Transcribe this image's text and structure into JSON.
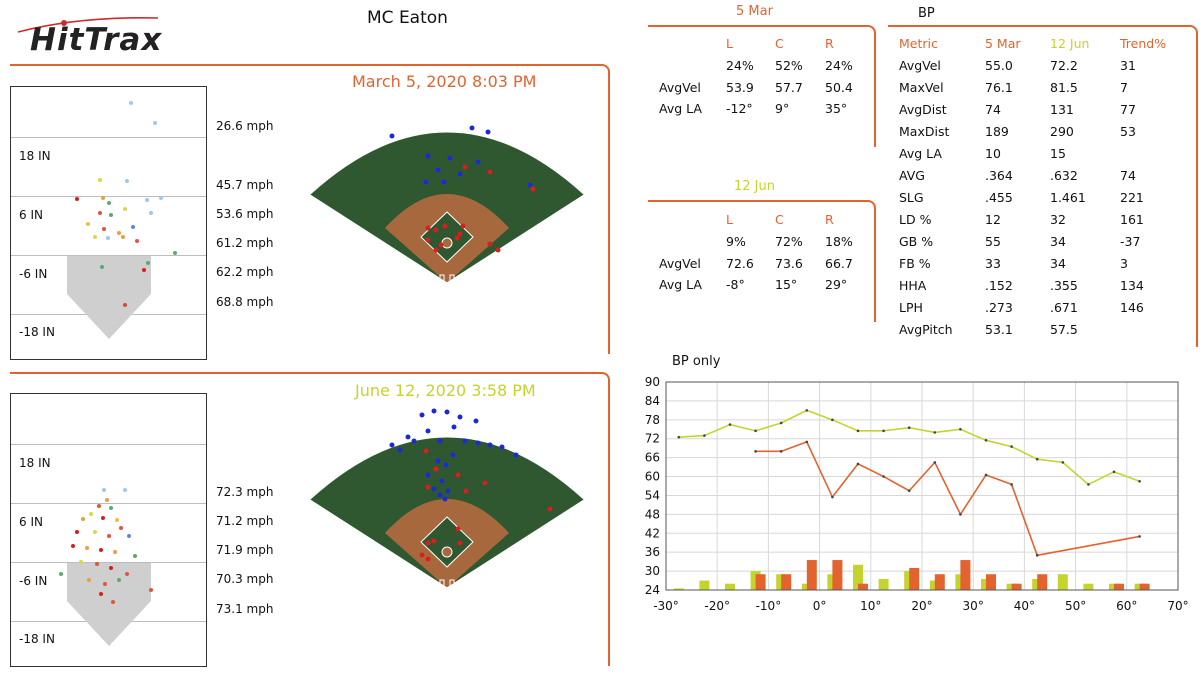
{
  "brand": {
    "logo_text": "HitTrax"
  },
  "player": {
    "name": "MC Eaton"
  },
  "colors": {
    "orange": "#e2632e",
    "yellow": "#c5d42c",
    "field_green": "#2f5730",
    "dirt": "#a8683e"
  },
  "session1": {
    "title": "March 5, 2020 8:03 PM",
    "zone_labels": [
      "18 IN",
      "6 IN",
      "-6 IN",
      "-18 IN"
    ],
    "mph": [
      "26.6 mph",
      "45.7 mph",
      "53.6 mph",
      "61.2 mph",
      "62.2 mph",
      "68.8 mph"
    ]
  },
  "session2": {
    "title": "June 12, 2020 3:58 PM",
    "zone_labels": [
      "18 IN",
      "6 IN",
      "-6 IN",
      "-18 IN"
    ],
    "mph": [
      "72.3 mph",
      "71.2 mph",
      "71.9 mph",
      "70.3 mph",
      "73.1 mph"
    ]
  },
  "split_mar": {
    "title": "5 Mar",
    "headers": [
      "L",
      "C",
      "R"
    ],
    "pct": [
      "24%",
      "52%",
      "24%"
    ],
    "avgvel_label": "AvgVel",
    "avgvel": [
      "53.9",
      "57.7",
      "50.4"
    ],
    "avgla_label": "Avg LA",
    "avgla": [
      "-12°",
      "9°",
      "35°"
    ]
  },
  "split_jun": {
    "title": "12 Jun",
    "headers": [
      "L",
      "C",
      "R"
    ],
    "pct": [
      "9%",
      "72%",
      "18%"
    ],
    "avgvel_label": "AvgVel",
    "avgvel": [
      "72.6",
      "73.6",
      "66.7"
    ],
    "avgla_label": "Avg LA",
    "avgla": [
      "-8°",
      "15°",
      "29°"
    ]
  },
  "bp_table": {
    "title": "BP",
    "headers": [
      "Metric",
      "5 Mar",
      "12 Jun",
      "Trend%"
    ],
    "rows": [
      [
        "AvgVel",
        "55.0",
        "72.2",
        "31"
      ],
      [
        "MaxVel",
        "76.1",
        "81.5",
        "7"
      ],
      [
        "AvgDist",
        "74",
        "131",
        "77"
      ],
      [
        "MaxDist",
        "189",
        "290",
        "53"
      ],
      [
        "Avg LA",
        "10",
        "15",
        ""
      ],
      [
        "AVG",
        ".364",
        ".632",
        "74"
      ],
      [
        "SLG",
        ".455",
        "1.461",
        "221"
      ],
      [
        "LD %",
        "12",
        "32",
        "161"
      ],
      [
        "GB %",
        "55",
        "34",
        "-37"
      ],
      [
        "FB %",
        "33",
        "34",
        "3"
      ],
      [
        "HHA",
        ".152",
        ".355",
        "134"
      ],
      [
        "LPH",
        ".273",
        ".671",
        "146"
      ],
      [
        "AvgPitch",
        "53.1",
        "57.5",
        ""
      ]
    ]
  },
  "chart_data": {
    "type": "line",
    "title": "BP only",
    "xlabel": "",
    "ylabel": "",
    "xlim": [
      -30,
      70
    ],
    "ylim": [
      24,
      90
    ],
    "xticks": [
      "-30°",
      "-20°",
      "-10°",
      "0°",
      "10°",
      "20°",
      "30°",
      "40°",
      "50°",
      "60°",
      "70°"
    ],
    "yticks": [
      90,
      84,
      78,
      72,
      66,
      60,
      54,
      48,
      42,
      36,
      30,
      24
    ],
    "grid": true,
    "series": [
      {
        "color": "#c5d42c",
        "style": "line",
        "x": [
          -27.5,
          -22.5,
          -17.5,
          -12.5,
          -7.5,
          -2.5,
          2.5,
          7.5,
          12.5,
          17.5,
          22.5,
          27.5,
          32.5,
          37.5,
          42.5,
          47.5,
          52.5,
          57.5,
          62.5
        ],
        "y": [
          72.5,
          73,
          76.5,
          74.5,
          77,
          81,
          78,
          74.5,
          74.5,
          75.5,
          74,
          75,
          71.5,
          69.5,
          65.5,
          64.5,
          57.5,
          61.5,
          58.5
        ]
      },
      {
        "color": "#e2632e",
        "style": "line",
        "x": [
          -12.5,
          -7.5,
          -2.5,
          2.5,
          7.5,
          12.5,
          17.5,
          22.5,
          27.5,
          32.5,
          37.5,
          42.5,
          62.5
        ],
        "y": [
          68,
          68,
          71,
          53.5,
          64,
          60,
          55.5,
          64.5,
          48,
          60.5,
          57.5,
          35,
          41
        ]
      },
      {
        "color": "#c5d42c",
        "style": "bar",
        "x": [
          -27.5,
          -22.5,
          -17.5,
          -12.5,
          -7.5,
          -2.5,
          2.5,
          7.5,
          12.5,
          17.5,
          22.5,
          27.5,
          32.5,
          37.5,
          42.5,
          47.5,
          52.5,
          57.5,
          62.5
        ],
        "y": [
          24.5,
          27,
          26,
          30,
          29,
          26,
          29,
          32,
          27.5,
          30,
          27,
          29,
          27.5,
          26,
          27.5,
          29,
          26,
          26,
          26
        ]
      },
      {
        "color": "#e2632e",
        "style": "bar",
        "x": [
          -12.5,
          -7.5,
          -2.5,
          2.5,
          7.5,
          12.5,
          17.5,
          22.5,
          27.5,
          32.5,
          37.5,
          42.5,
          47.5,
          52.5,
          57.5,
          62.5
        ],
        "y": [
          29,
          29,
          33.5,
          33.5,
          26,
          24,
          31,
          29,
          33.5,
          29,
          26,
          29,
          24,
          24,
          26,
          26
        ]
      }
    ]
  }
}
